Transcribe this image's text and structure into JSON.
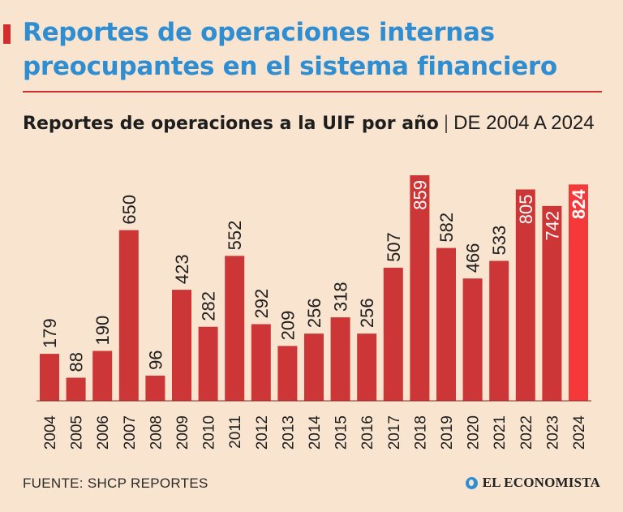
{
  "header": {
    "title_line1": "Reportes de operaciones internas",
    "title_line2": "preocupantes en el sistema financiero",
    "subtitle_bold": "Reportes de operaciones a la UIF por año",
    "subtitle_sep": "|",
    "subtitle_range": "DE 2004 A 2024"
  },
  "footer": {
    "source": "FUENTE: SHCP REPORTES",
    "brand": "EL ECONOMISTA",
    "brand_icon": "globe-icon"
  },
  "colors": {
    "bar": "#cd3636",
    "bar_highlight": "#f5383a",
    "label_outside": "#1e1e1e",
    "label_inside": "#ffffff",
    "title": "#2f8ed2"
  },
  "chart_data": {
    "type": "bar",
    "title": "Reportes de operaciones a la UIF por año",
    "xlabel": "",
    "ylabel": "",
    "ylim": [
      0,
      900
    ],
    "grid": false,
    "categories": [
      "2004",
      "2005",
      "2006",
      "2007",
      "2008",
      "2009",
      "2010",
      "2011",
      "2012",
      "2013",
      "2014",
      "2015",
      "2016",
      "2017",
      "2018",
      "2019",
      "2020",
      "2021",
      "2022",
      "2023",
      "2024"
    ],
    "values": [
      179,
      88,
      190,
      650,
      96,
      423,
      282,
      552,
      292,
      209,
      256,
      318,
      256,
      507,
      859,
      582,
      466,
      533,
      805,
      742,
      824
    ],
    "highlight_category": "2024",
    "labels_inside": [
      "2018",
      "2022",
      "2023",
      "2024"
    ]
  }
}
